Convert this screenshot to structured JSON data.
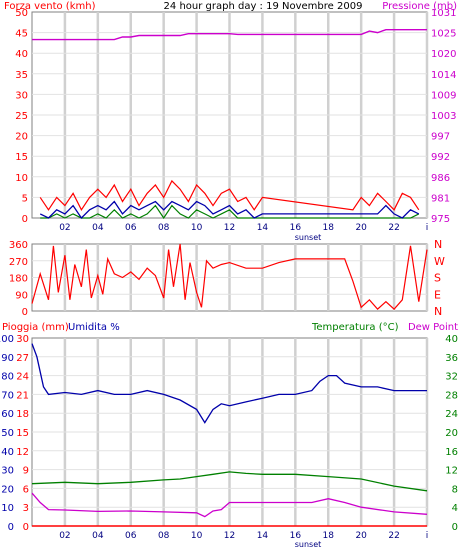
{
  "chart_data": [
    {
      "type": "line",
      "title": "24 hour graph day : 19 Novembre 2009",
      "left_label": "Forza vento (kmh)",
      "right_label": "Pressione (mb)",
      "x_ticks": [
        "02",
        "04",
        "06",
        "08",
        "10",
        "12",
        "14",
        "16",
        "18",
        "20",
        "22",
        "i"
      ],
      "x_annotation": "sunset",
      "ylim_left": [
        0,
        50
      ],
      "yticks_left": [
        "0",
        "5",
        "10",
        "15",
        "20",
        "25",
        "30",
        "35",
        "40",
        "45",
        "50"
      ],
      "ylim_right": [
        975,
        1031
      ],
      "yticks_right": [
        "975",
        "981",
        "986",
        "992",
        "997",
        "1003",
        "1009",
        "1014",
        "1020",
        "1025",
        "1031"
      ],
      "colors": {
        "gust": "#ff0000",
        "wind": "#0000aa",
        "avg": "#008000",
        "pressure": "#cc00cc",
        "grid": "#c8c8c8"
      },
      "series": [
        {
          "name": "",
          "color": "#ff0000",
          "x": [
            0.5,
            1,
            1.5,
            2,
            2.5,
            3,
            3.5,
            4,
            4.5,
            5,
            5.5,
            6,
            6.5,
            7,
            7.5,
            8,
            8.5,
            9,
            9.5,
            10,
            10.5,
            11,
            11.5,
            12,
            12.5,
            13,
            13.5,
            14,
            19.5,
            20,
            20.5,
            21,
            21.5,
            22,
            22.5,
            23,
            23.5
          ],
          "values": [
            5,
            2,
            5,
            3,
            6,
            2,
            5,
            7,
            5,
            8,
            4,
            7,
            3,
            6,
            8,
            5,
            9,
            7,
            4,
            8,
            6,
            3,
            6,
            7,
            4,
            5,
            2,
            5,
            2,
            5,
            3,
            6,
            4,
            2,
            6,
            5,
            2
          ]
        },
        {
          "name": "",
          "color": "#0000aa",
          "x": [
            0.5,
            1,
            1.5,
            2,
            2.5,
            3,
            3.5,
            4,
            4.5,
            5,
            5.5,
            6,
            6.5,
            7,
            7.5,
            8,
            8.5,
            9,
            9.5,
            10,
            10.5,
            11,
            11.5,
            12,
            12.5,
            13,
            13.5,
            14,
            21,
            21.5,
            22,
            22.5,
            23,
            23.5
          ],
          "values": [
            1,
            0,
            2,
            1,
            3,
            0,
            2,
            3,
            2,
            4,
            1,
            3,
            2,
            3,
            4,
            2,
            4,
            3,
            2,
            4,
            3,
            1,
            2,
            3,
            1,
            2,
            0,
            1,
            1,
            3,
            1,
            0,
            2,
            1
          ]
        },
        {
          "name": "",
          "color": "#008000",
          "x": [
            0.5,
            1,
            1.5,
            2,
            2.5,
            3,
            3.5,
            4,
            4.5,
            5,
            5.5,
            6,
            6.5,
            7,
            7.5,
            8,
            8.5,
            9,
            9.5,
            10,
            10.5,
            11,
            11.5,
            12,
            12.5,
            13,
            13.5,
            14,
            23,
            23.5
          ],
          "values": [
            0,
            0,
            1,
            0,
            1,
            0,
            0,
            1,
            0,
            2,
            0,
            1,
            0,
            1,
            3,
            0,
            3,
            1,
            0,
            2,
            1,
            0,
            1,
            2,
            0,
            0,
            0,
            0,
            0,
            1
          ]
        },
        {
          "name": "",
          "color": "#cc00cc",
          "x": [
            0,
            5,
            5.5,
            6,
            6.5,
            9,
            9.5,
            12,
            12.5,
            20,
            20.5,
            21,
            21.5,
            24
          ],
          "values": [
            1023.5,
            1023.5,
            1024.2,
            1024.2,
            1024.6,
            1024.6,
            1025.1,
            1025.1,
            1024.9,
            1024.9,
            1025.8,
            1025.4,
            1026.2,
            1026.2
          ]
        }
      ]
    },
    {
      "type": "line",
      "left_label": "",
      "right_label": "",
      "x_ticks": [],
      "ylim_left": [
        0,
        360
      ],
      "yticks_left": [
        "0",
        "90",
        "180",
        "270",
        "360"
      ],
      "yticks_right": [
        "N",
        "E",
        "S",
        "W",
        "N"
      ],
      "series": [
        {
          "name": "",
          "color": "#ff0000",
          "x": [
            0,
            0.5,
            1,
            1.3,
            1.6,
            2,
            2.3,
            2.6,
            3,
            3.3,
            3.6,
            4,
            4.3,
            4.6,
            5,
            5.5,
            6,
            6.5,
            7,
            7.5,
            8,
            8.3,
            8.6,
            9,
            9.3,
            9.6,
            10,
            10.3,
            10.6,
            11,
            11.5,
            12,
            13,
            14,
            15,
            16,
            17,
            18,
            19,
            19.5,
            20,
            20.5,
            21,
            21.5,
            22,
            22.5,
            23,
            23.5,
            24
          ],
          "values": [
            40,
            200,
            60,
            350,
            100,
            300,
            60,
            250,
            130,
            330,
            70,
            190,
            90,
            280,
            200,
            180,
            210,
            170,
            230,
            190,
            70,
            330,
            130,
            360,
            60,
            260,
            100,
            20,
            270,
            230,
            250,
            260,
            230,
            230,
            260,
            280,
            280,
            280,
            280,
            160,
            20,
            60,
            10,
            50,
            10,
            60,
            350,
            50,
            330
          ]
        }
      ]
    },
    {
      "type": "line",
      "left_label": "Pioggia (mm)",
      "left_label_2": "Umidita %",
      "right_label": "Temperatura (°C)",
      "right_label_2": "Dew Point",
      "x_ticks": [
        "02",
        "04",
        "06",
        "08",
        "10",
        "12",
        "14",
        "16",
        "18",
        "20",
        "22",
        "i"
      ],
      "x_annotation": "sunset",
      "ylim_left": [
        0,
        30
      ],
      "yticks_left_rain": [
        "0",
        "3",
        "6",
        "9",
        "12",
        "15",
        "18",
        "21",
        "24",
        "27",
        "30"
      ],
      "yticks_left_humidity": [
        "0",
        "10",
        "20",
        "30",
        "40",
        "50",
        "60",
        "70",
        "80",
        "90",
        "100"
      ],
      "ylim_right": [
        0,
        40
      ],
      "yticks_right": [
        "0",
        "4",
        "8",
        "12",
        "16",
        "20",
        "24",
        "28",
        "32",
        "36",
        "40"
      ],
      "series": [
        {
          "name": "",
          "color": "#0000aa",
          "x": [
            0,
            0.3,
            0.7,
            1,
            2,
            3,
            4,
            5,
            6,
            7,
            8,
            9,
            10,
            10.5,
            11,
            11.5,
            12,
            13,
            14,
            15,
            16,
            17,
            17.5,
            18,
            18.5,
            19,
            20,
            21,
            22,
            23,
            24
          ],
          "values": [
            97,
            90,
            74,
            70,
            71,
            70,
            72,
            70,
            70,
            72,
            70,
            67,
            62,
            55,
            62,
            65,
            64,
            66,
            68,
            70,
            70,
            72,
            77,
            80,
            80,
            76,
            74,
            74,
            72,
            72,
            72
          ]
        },
        {
          "name": "",
          "color": "#008000",
          "x": [
            0,
            2,
            4,
            6,
            8,
            9,
            10,
            11,
            12,
            13,
            14,
            16,
            18,
            20,
            22,
            24
          ],
          "values": [
            9,
            9.3,
            9,
            9.3,
            9.8,
            10,
            10.5,
            11,
            11.5,
            11.2,
            11,
            11,
            10.5,
            10,
            8.5,
            7.5
          ]
        },
        {
          "name": "",
          "color": "#cc00cc",
          "x": [
            0,
            0.5,
            1,
            2,
            4,
            6,
            8,
            10,
            10.5,
            11,
            11.5,
            12,
            14,
            16,
            17,
            18,
            19,
            20,
            22,
            24
          ],
          "values": [
            7,
            5,
            3.5,
            3.4,
            3.1,
            3.2,
            3,
            2.8,
            2,
            3.2,
            3.5,
            5,
            5,
            5,
            5,
            5.8,
            5,
            4,
            3,
            2.5
          ]
        },
        {
          "name": "",
          "color": "#ff0000",
          "x": [
            0,
            24
          ],
          "values": [
            0,
            0
          ]
        }
      ]
    }
  ]
}
